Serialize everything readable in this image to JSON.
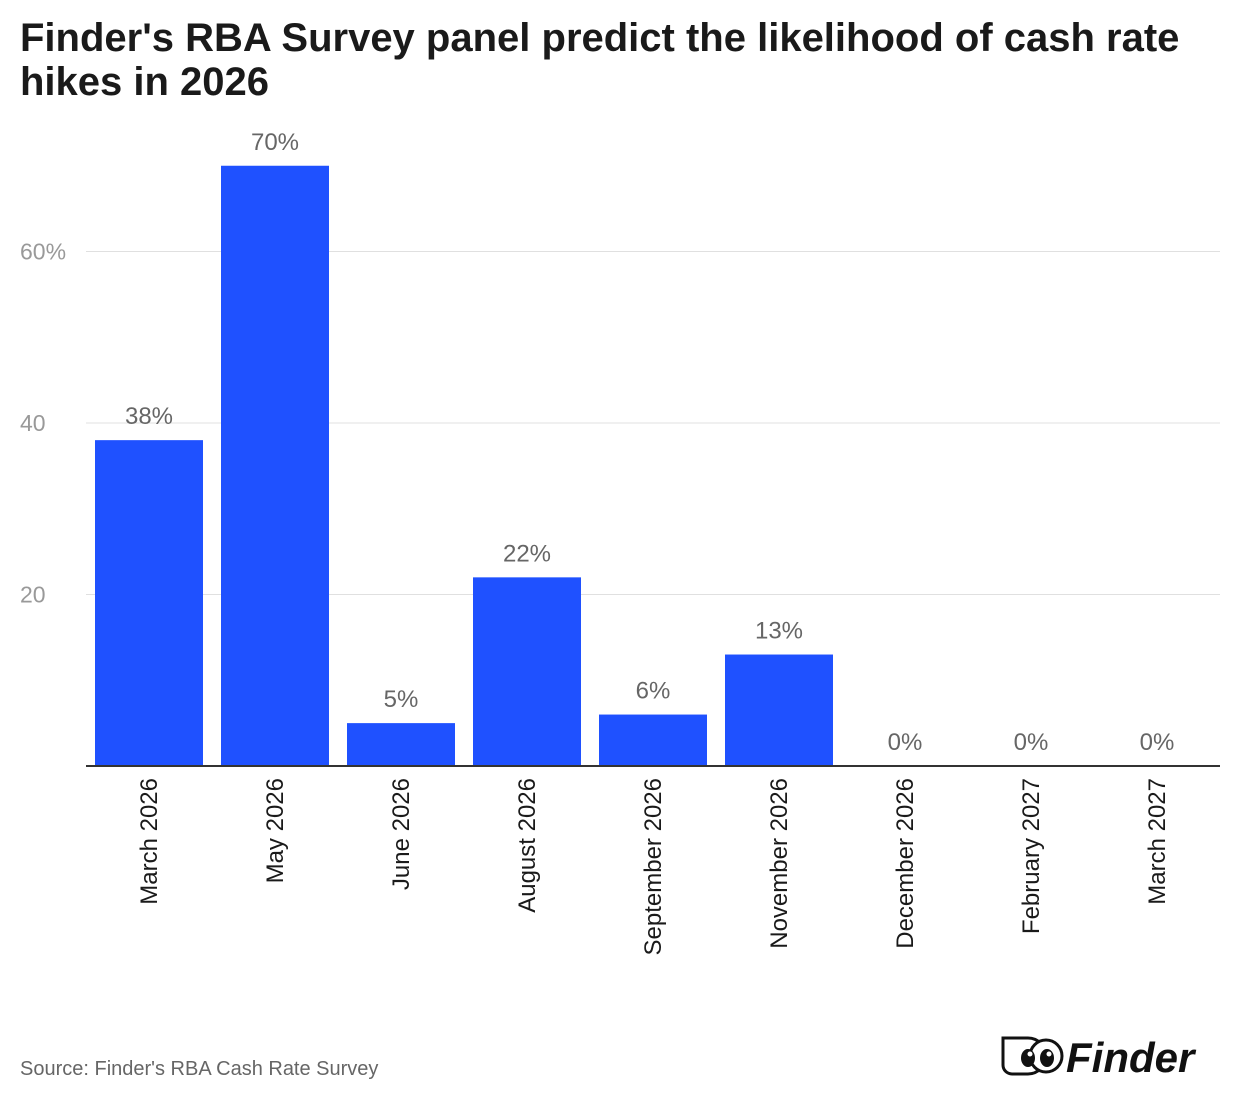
{
  "title": "Finder's RBA Survey panel predict the likelihood of cash rate hikes in 2026",
  "source": "Source: Finder's RBA Cash Rate Survey",
  "logo_text": "Finder",
  "colors": {
    "bar": "#1f51ff",
    "text": "#1a1a1a",
    "label": "#666666",
    "grid": "#e0e0e0"
  },
  "chart_data": {
    "type": "bar",
    "title": "Finder's RBA Survey panel predict the likelihood of cash rate hikes in 2026",
    "xlabel": "",
    "ylabel": "",
    "categories": [
      "March 2026",
      "May 2026",
      "June 2026",
      "August 2026",
      "September 2026",
      "November 2026",
      "December 2026",
      "February 2027",
      "March 2027"
    ],
    "values": [
      38,
      70,
      5,
      22,
      6,
      13,
      0,
      0,
      0
    ],
    "data_labels": [
      "38%",
      "70%",
      "5%",
      "22%",
      "6%",
      "13%",
      "0%",
      "0%",
      "0%"
    ],
    "yticks": [
      20,
      40,
      60
    ],
    "ytick_labels": [
      "20",
      "40",
      "60%"
    ],
    "ylim": [
      0,
      70
    ],
    "grid": true,
    "legend": "none"
  }
}
